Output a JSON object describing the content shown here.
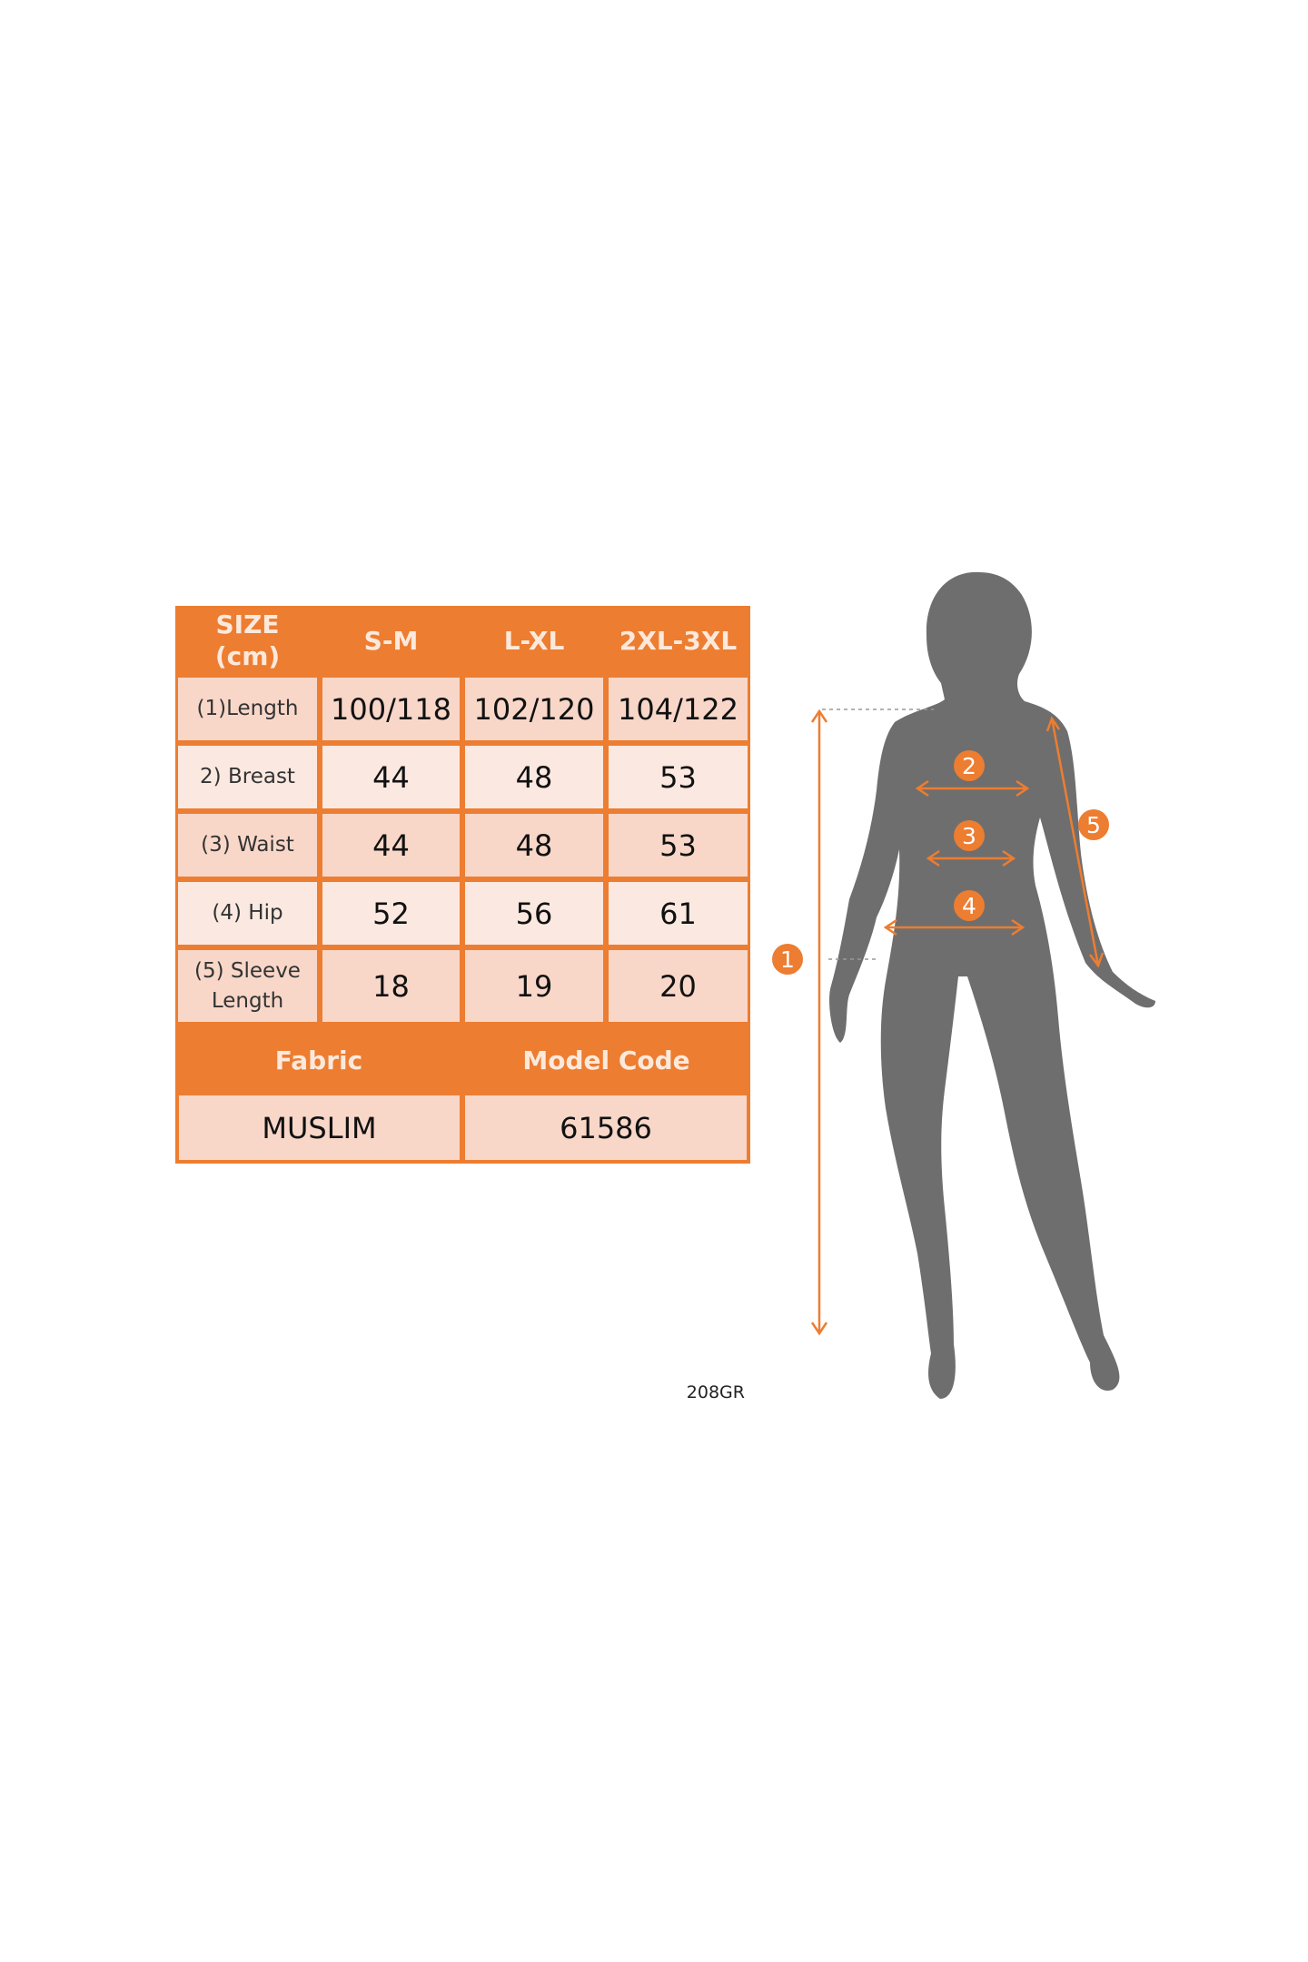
{
  "colors": {
    "accent": "#ed7d31",
    "cell_dark": "#f8d7c9",
    "cell_light": "#fbe9e1",
    "silhouette": "#6e6e6e"
  },
  "table": {
    "corner_label": [
      "SIZE",
      "(cm)"
    ],
    "sizes": [
      "S-M",
      "L-XL",
      "2XL-3XL"
    ],
    "rows": [
      {
        "label": "(1)Length",
        "values": [
          "100/118",
          "102/120",
          "104/122"
        ]
      },
      {
        "label": "2) Breast",
        "values": [
          "44",
          "48",
          "53"
        ]
      },
      {
        "label": "(3) Waist",
        "values": [
          "44",
          "48",
          "53"
        ]
      },
      {
        "label": "(4) Hip",
        "values": [
          "52",
          "56",
          "61"
        ]
      },
      {
        "label": "(5) Sleeve Length",
        "values": [
          "18",
          "19",
          "20"
        ]
      }
    ],
    "fabric_label": "Fabric",
    "model_code_label": "Model Code",
    "fabric_value": "MUSLIM",
    "model_code_value": "61586"
  },
  "code_note": "208GR",
  "figure": {
    "markers": [
      "1",
      "2",
      "3",
      "4",
      "5"
    ]
  }
}
